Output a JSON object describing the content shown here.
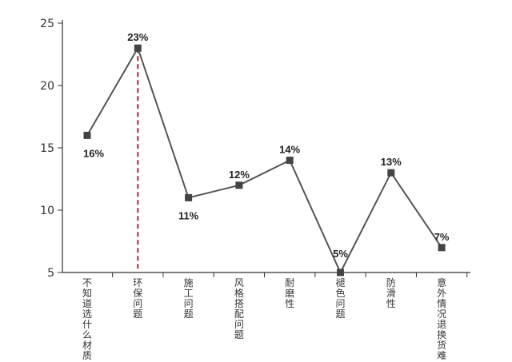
{
  "chart_data": {
    "type": "line",
    "title": "",
    "xlabel": "",
    "ylabel": "",
    "categories": [
      "不知道选什么材质",
      "环保问题",
      "施工问题",
      "风格搭配问题",
      "耐磨性",
      "褪色问题",
      "防滑性",
      "意外情况退换货难"
    ],
    "series": [
      {
        "values": [
          16,
          23,
          11,
          12,
          14,
          5,
          13,
          7
        ]
      }
    ],
    "data_labels": [
      "16%",
      "23%",
      "11%",
      "12%",
      "14%",
      "5%",
      "13%",
      "7%"
    ],
    "ylim": [
      5,
      25
    ],
    "yticks": [
      5,
      10,
      15,
      20,
      25
    ],
    "highlight_category_index": 1,
    "grid": false,
    "legend": "none",
    "colors": {
      "line": "#555555",
      "marker": "#444444",
      "highlight": "#b0242a",
      "axis": "#333333"
    }
  }
}
